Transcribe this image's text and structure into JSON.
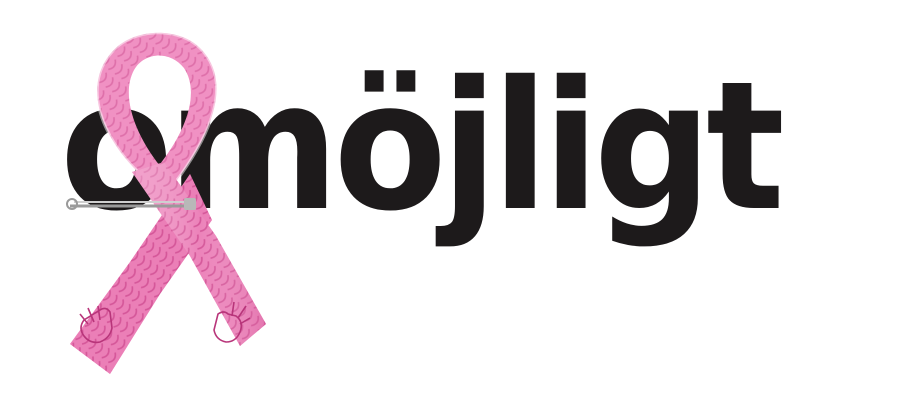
{
  "logo": {
    "wordmark": "omöjligt",
    "text_color": "#1d1a1b",
    "ribbon_color": "#ec7fb7",
    "ribbon_pattern_color": "#c93a85",
    "ribbon_icon": "pink-ribbon-icon"
  }
}
